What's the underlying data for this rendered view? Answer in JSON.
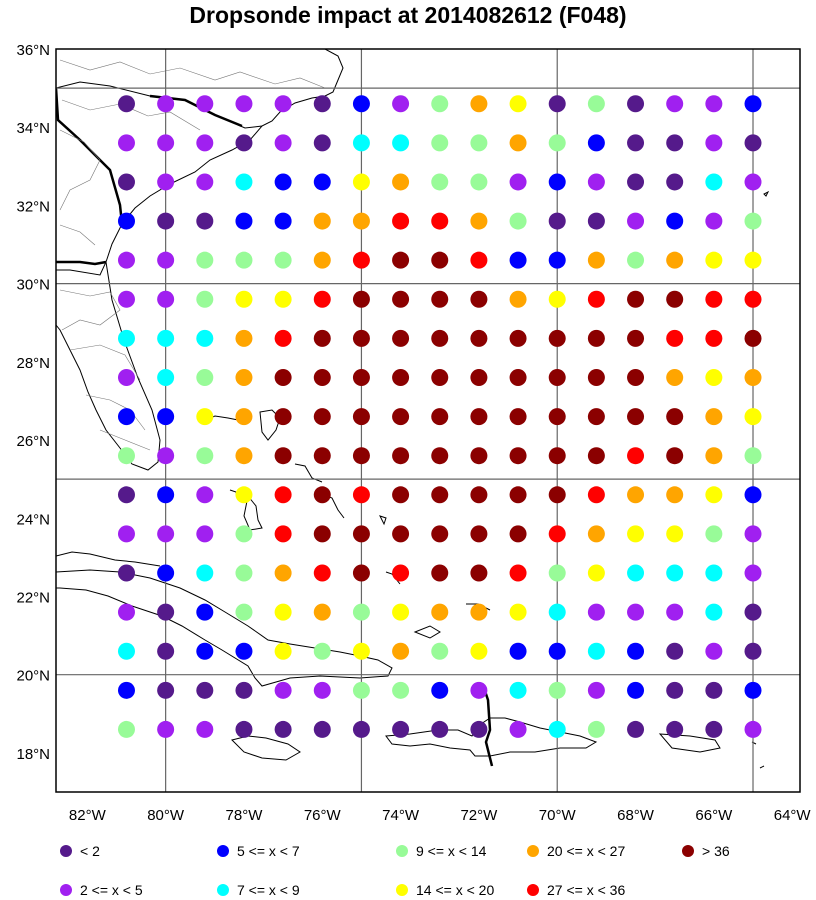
{
  "title": "Dropsonde impact at 2014082612 (F048)",
  "colors": {
    "c0": "#551a8b",
    "c1": "#a020f0",
    "c2": "#0000ff",
    "c3": "#00ffff",
    "c4": "#98fb98",
    "c5": "#ffa500",
    "c6": "#ffff00",
    "c7": "#ff0000",
    "c8": "#8b0000"
  },
  "legend": [
    {
      "cls": "c0",
      "label": "<  2"
    },
    {
      "cls": "c2",
      "label": "5 <= x <  7"
    },
    {
      "cls": "c4",
      "label": "9 <= x < 14"
    },
    {
      "cls": "c5",
      "label": "20 <= x < 27"
    },
    {
      "cls": "c8",
      "label": "> 36"
    },
    {
      "cls": "c1",
      "label": "2 <= x <  5"
    },
    {
      "cls": "c3",
      "label": "7 <= x <  9"
    },
    {
      "cls": "c6",
      "label": "14 <= x < 20"
    },
    {
      "cls": "c7",
      "label": "27 <= x < 36"
    }
  ],
  "chart_data": {
    "type": "scatter",
    "title": "Dropsonde impact at 2014082612 (F048)",
    "x_ticks": [
      "82°W",
      "80°W",
      "78°W",
      "76°W",
      "74°W",
      "72°W",
      "70°W",
      "68°W",
      "66°W",
      "64°W"
    ],
    "y_ticks": [
      "36°N",
      "34°N",
      "32°N",
      "30°N",
      "28°N",
      "26°N",
      "24°N",
      "22°N",
      "20°N",
      "18°N"
    ],
    "x_range_deg_lon": [
      -82.8,
      -63.8
    ],
    "y_range_deg_lat": [
      17.0,
      36.0
    ],
    "grid_lons": [
      -80,
      -75,
      -70,
      -65
    ],
    "grid_lats": [
      20,
      25,
      30,
      35
    ],
    "point_lons": [
      -81.0,
      -80.0,
      -79.0,
      -78.0,
      -77.0,
      -76.0,
      -75.0,
      -74.0,
      -73.0,
      -72.0,
      -71.0,
      -70.0,
      -69.0,
      -68.0,
      -67.0,
      -66.0,
      -65.0
    ],
    "point_lats": [
      34.6,
      33.6,
      32.6,
      31.6,
      30.6,
      29.6,
      28.6,
      27.6,
      26.6,
      25.6,
      24.6,
      23.6,
      22.6,
      21.6,
      20.6,
      19.6,
      18.6
    ],
    "classes": [
      "< 2",
      "2 <= x < 5",
      "5 <= x < 7",
      "7 <= x < 9",
      "9 <= x < 14",
      "14 <= x < 20",
      "20 <= x < 27",
      "27 <= x < 36",
      "> 36"
    ],
    "rows": [
      [
        0,
        1,
        1,
        1,
        1,
        0,
        2,
        1,
        4,
        5,
        6,
        0,
        4,
        0,
        1,
        1,
        2
      ],
      [
        1,
        1,
        1,
        0,
        1,
        0,
        3,
        3,
        4,
        4,
        5,
        4,
        2,
        0,
        0,
        1,
        0
      ],
      [
        0,
        1,
        1,
        3,
        2,
        2,
        6,
        5,
        4,
        4,
        1,
        2,
        1,
        0,
        0,
        3,
        1
      ],
      [
        2,
        0,
        0,
        2,
        2,
        5,
        5,
        7,
        7,
        5,
        4,
        0,
        0,
        1,
        2,
        1,
        4
      ],
      [
        1,
        1,
        4,
        4,
        4,
        5,
        7,
        8,
        8,
        7,
        2,
        2,
        5,
        4,
        5,
        6,
        6
      ],
      [
        1,
        1,
        4,
        6,
        6,
        7,
        8,
        8,
        8,
        8,
        5,
        6,
        7,
        8,
        8,
        7,
        7
      ],
      [
        3,
        3,
        3,
        5,
        7,
        8,
        8,
        8,
        8,
        8,
        8,
        8,
        8,
        8,
        7,
        7,
        8
      ],
      [
        1,
        3,
        4,
        5,
        8,
        8,
        8,
        8,
        8,
        8,
        8,
        8,
        8,
        8,
        5,
        6,
        5
      ],
      [
        2,
        2,
        6,
        5,
        8,
        8,
        8,
        8,
        8,
        8,
        8,
        8,
        8,
        8,
        8,
        5,
        6
      ],
      [
        4,
        1,
        4,
        5,
        8,
        8,
        8,
        8,
        8,
        8,
        8,
        8,
        8,
        7,
        8,
        5,
        4
      ],
      [
        0,
        2,
        1,
        6,
        7,
        8,
        7,
        8,
        8,
        8,
        8,
        8,
        7,
        5,
        5,
        6,
        2
      ],
      [
        1,
        1,
        1,
        4,
        7,
        8,
        8,
        8,
        8,
        8,
        8,
        7,
        5,
        6,
        6,
        4,
        1
      ],
      [
        0,
        2,
        3,
        4,
        5,
        7,
        8,
        7,
        8,
        8,
        7,
        4,
        6,
        3,
        3,
        3,
        1
      ],
      [
        1,
        0,
        2,
        4,
        6,
        5,
        4,
        6,
        5,
        5,
        6,
        3,
        1,
        1,
        1,
        3,
        0
      ],
      [
        3,
        0,
        2,
        2,
        6,
        4,
        6,
        5,
        4,
        6,
        2,
        2,
        3,
        2,
        0,
        1,
        0
      ],
      [
        2,
        0,
        0,
        0,
        1,
        1,
        4,
        4,
        2,
        1,
        3,
        4,
        1,
        2,
        0,
        0,
        2
      ],
      [
        4,
        1,
        1,
        0,
        0,
        0,
        0,
        0,
        0,
        0,
        1,
        3,
        4,
        0,
        0,
        0,
        1
      ]
    ]
  }
}
